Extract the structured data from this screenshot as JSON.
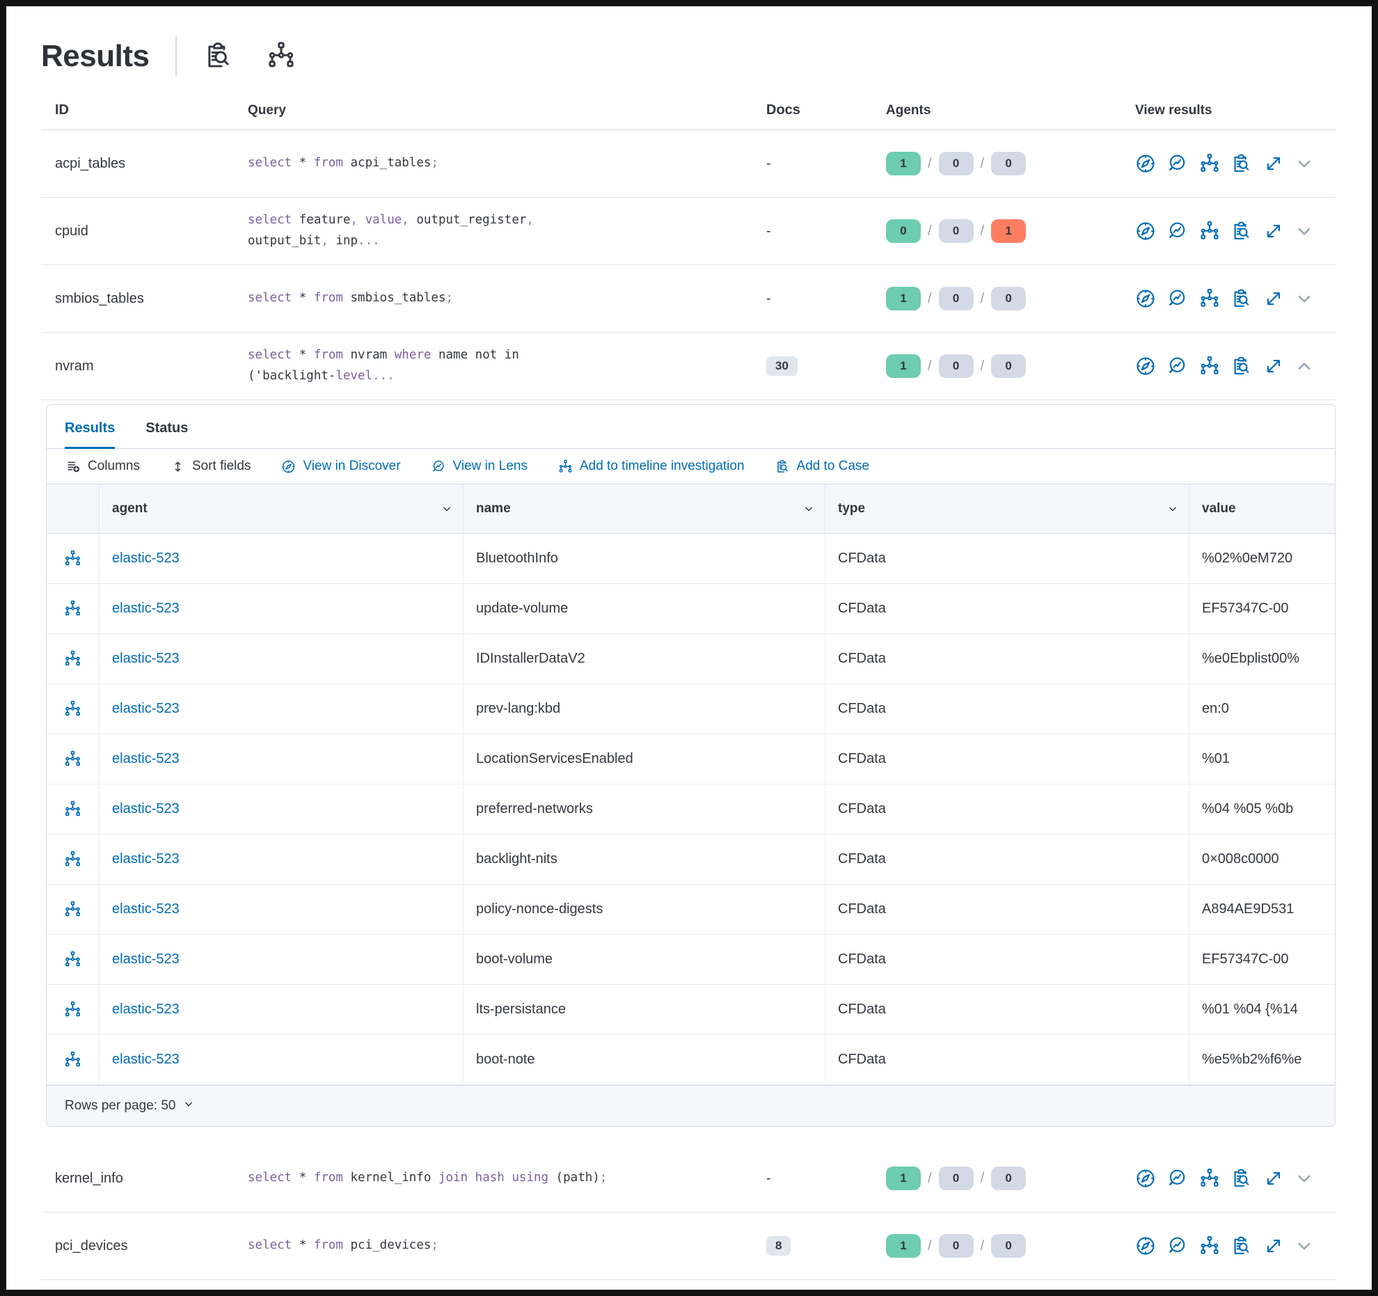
{
  "theme": {
    "accent_blue": "#006bb4",
    "keyword_purple": "#7c609e",
    "badge_green": "#6dccb1",
    "badge_gray": "#d3dae6",
    "badge_red": "#ff7e62"
  },
  "header": {
    "title": "Results",
    "icons": [
      "inspect-icon",
      "timeline-icon"
    ]
  },
  "outer_table": {
    "columns": [
      "ID",
      "Query",
      "Docs",
      "Agents",
      "View results"
    ],
    "action_icons": [
      "discover",
      "lens",
      "timeline",
      "case",
      "expand"
    ],
    "rows_top": [
      {
        "id": "acpi_tables",
        "docs": "-",
        "docs_badge": false,
        "agents": [
          "1",
          "0",
          "0"
        ],
        "agent_states": [
          "success",
          "neutral",
          "neutral"
        ],
        "chevron": "down",
        "query": [
          {
            "t": "select",
            "c": "kw"
          },
          {
            "t": " * ",
            "c": "id"
          },
          {
            "t": "from",
            "c": "kw"
          },
          {
            "t": " acpi_tables",
            "c": "id"
          },
          {
            "t": ";",
            "c": "pt"
          }
        ]
      },
      {
        "id": "cpuid",
        "docs": "-",
        "docs_badge": false,
        "agents": [
          "0",
          "0",
          "1"
        ],
        "agent_states": [
          "success",
          "neutral",
          "danger"
        ],
        "chevron": "down",
        "query": [
          {
            "t": "select",
            "c": "kw"
          },
          {
            "t": " feature",
            "c": "id"
          },
          {
            "t": ", ",
            "c": "pt"
          },
          {
            "t": "value",
            "c": "kw"
          },
          {
            "t": ", ",
            "c": "pt"
          },
          {
            "t": "output_register",
            "c": "id"
          },
          {
            "t": ",",
            "c": "pt"
          },
          {
            "br": true
          },
          {
            "t": "output_bit",
            "c": "id"
          },
          {
            "t": ", ",
            "c": "pt"
          },
          {
            "t": "inp",
            "c": "id"
          },
          {
            "t": "...",
            "c": "pt"
          }
        ]
      },
      {
        "id": "smbios_tables",
        "docs": "-",
        "docs_badge": false,
        "agents": [
          "1",
          "0",
          "0"
        ],
        "agent_states": [
          "success",
          "neutral",
          "neutral"
        ],
        "chevron": "down",
        "query": [
          {
            "t": "select",
            "c": "kw"
          },
          {
            "t": " * ",
            "c": "id"
          },
          {
            "t": "from",
            "c": "kw"
          },
          {
            "t": " smbios_tables",
            "c": "id"
          },
          {
            "t": ";",
            "c": "pt"
          }
        ]
      },
      {
        "id": "nvram",
        "docs": "30",
        "docs_badge": true,
        "agents": [
          "1",
          "0",
          "0"
        ],
        "agent_states": [
          "success",
          "neutral",
          "neutral"
        ],
        "chevron": "up",
        "expanded": true,
        "query": [
          {
            "t": "select",
            "c": "kw"
          },
          {
            "t": " * ",
            "c": "id"
          },
          {
            "t": "from",
            "c": "kw"
          },
          {
            "t": " nvram ",
            "c": "id"
          },
          {
            "t": "where",
            "c": "kw"
          },
          {
            "t": " name not in",
            "c": "id"
          },
          {
            "br": true
          },
          {
            "t": "('backlight-",
            "c": "id"
          },
          {
            "t": "level",
            "c": "kw"
          },
          {
            "t": "...",
            "c": "pt"
          }
        ]
      }
    ],
    "rows_bottom": [
      {
        "id": "kernel_info",
        "docs": "-",
        "docs_badge": false,
        "agents": [
          "1",
          "0",
          "0"
        ],
        "agent_states": [
          "success",
          "neutral",
          "neutral"
        ],
        "chevron": "down",
        "query": [
          {
            "t": "select",
            "c": "kw"
          },
          {
            "t": " * ",
            "c": "id"
          },
          {
            "t": "from",
            "c": "kw"
          },
          {
            "t": " kernel_info ",
            "c": "id"
          },
          {
            "t": "join",
            "c": "kw"
          },
          {
            "t": " ",
            "c": "id"
          },
          {
            "t": "hash",
            "c": "kw"
          },
          {
            "t": " ",
            "c": "id"
          },
          {
            "t": "using",
            "c": "kw"
          },
          {
            "t": " (path)",
            "c": "id"
          },
          {
            "t": ";",
            "c": "pt"
          }
        ]
      },
      {
        "id": "pci_devices",
        "docs": "8",
        "docs_badge": true,
        "agents": [
          "1",
          "0",
          "0"
        ],
        "agent_states": [
          "success",
          "neutral",
          "neutral"
        ],
        "chevron": "down",
        "query": [
          {
            "t": "select",
            "c": "kw"
          },
          {
            "t": " * ",
            "c": "id"
          },
          {
            "t": "from",
            "c": "kw"
          },
          {
            "t": " pci_devices",
            "c": "id"
          },
          {
            "t": ";",
            "c": "pt"
          }
        ]
      }
    ]
  },
  "expanded_panel": {
    "tabs": [
      {
        "label": "Results",
        "selected": true
      },
      {
        "label": "Status",
        "selected": false
      }
    ],
    "toolbar": [
      {
        "label": "Columns",
        "icon": "columns",
        "style": "dark"
      },
      {
        "label": "Sort fields",
        "icon": "sort",
        "style": "dark"
      },
      {
        "label": "View in Discover",
        "icon": "discover",
        "style": "link"
      },
      {
        "label": "View in Lens",
        "icon": "lens",
        "style": "link"
      },
      {
        "label": "Add to timeline investigation",
        "icon": "timeline",
        "style": "link"
      },
      {
        "label": "Add to Case",
        "icon": "case",
        "style": "link"
      }
    ],
    "grid": {
      "columns": [
        "agent",
        "name",
        "type",
        "value"
      ],
      "rows": [
        {
          "agent": "elastic-523",
          "name": "BluetoothInfo",
          "type": "CFData",
          "value": "%02%0eM720"
        },
        {
          "agent": "elastic-523",
          "name": "update-volume",
          "type": "CFData",
          "value": "EF57347C-00"
        },
        {
          "agent": "elastic-523",
          "name": "IDInstallerDataV2",
          "type": "CFData",
          "value": "%e0Ebplist00%"
        },
        {
          "agent": "elastic-523",
          "name": "prev-lang:kbd",
          "type": "CFData",
          "value": "en:0"
        },
        {
          "agent": "elastic-523",
          "name": "LocationServicesEnabled",
          "type": "CFData",
          "value": "%01"
        },
        {
          "agent": "elastic-523",
          "name": "preferred-networks",
          "type": "CFData",
          "value": "%04 %05 %0b"
        },
        {
          "agent": "elastic-523",
          "name": "backlight-nits",
          "type": "CFData",
          "value": "0×008c0000"
        },
        {
          "agent": "elastic-523",
          "name": "policy-nonce-digests",
          "type": "CFData",
          "value": "A894AE9D531"
        },
        {
          "agent": "elastic-523",
          "name": "boot-volume",
          "type": "CFData",
          "value": "EF57347C-00"
        },
        {
          "agent": "elastic-523",
          "name": "lts-persistance",
          "type": "CFData",
          "value": "%01 %04 {%14"
        },
        {
          "agent": "elastic-523",
          "name": "boot-note",
          "type": "CFData",
          "value": "%e5%b2%f6%e"
        }
      ]
    },
    "footer": {
      "rows_per_page_label": "Rows per page: 50"
    }
  }
}
